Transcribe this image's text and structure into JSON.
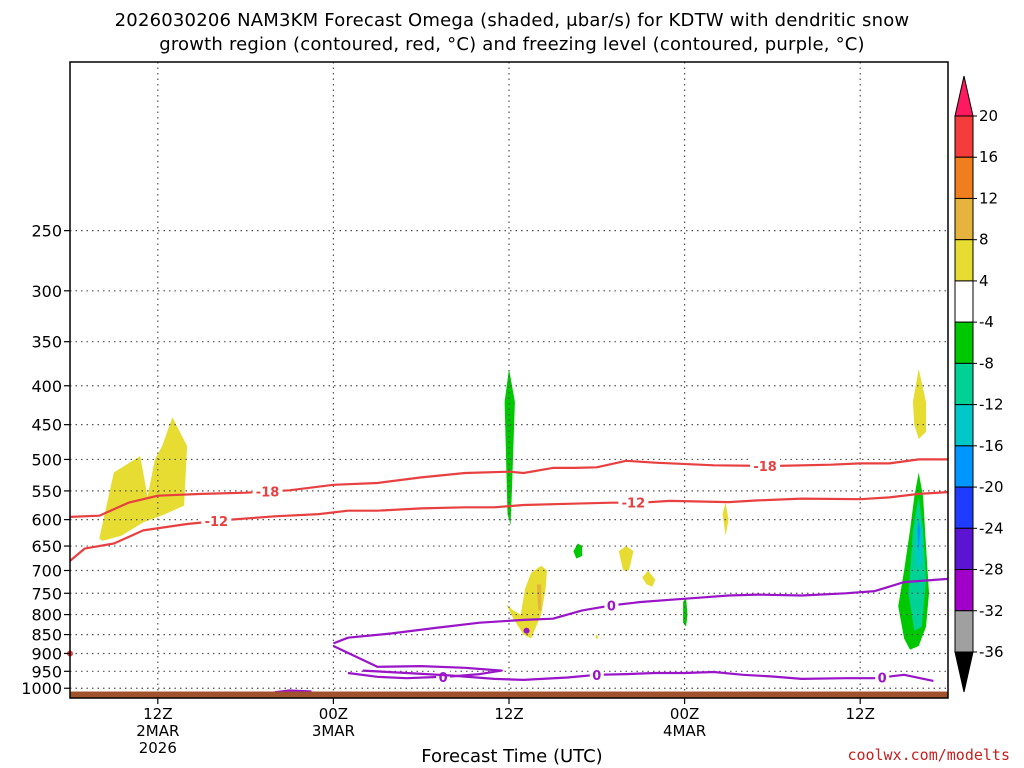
{
  "title_line1": "2026030206 NAM3KM Forecast Omega (shaded, μbar/s) for KDTW with dendritic snow",
  "title_line2": "growth region (contoured, red, °C) and freezing level (contoured, purple, °C)",
  "xaxis_title": "Forecast Time (UTC)",
  "credit": "coolwx.com/modelts",
  "chart_data": {
    "type": "heatmap",
    "title": "2026030206 NAM3KM Forecast Omega (shaded, μbar/s) for KDTW with dendritic snow growth region (contoured, red, °C) and freezing level (contoured, purple, °C)",
    "xlabel": "Forecast Time (UTC)",
    "ylabel": "",
    "x_unit": "forecast hour from 2026-03-02 06Z",
    "xlim": [
      0,
      60
    ],
    "ylim": [
      1030,
      150
    ],
    "y_scale": "log",
    "grid": true,
    "y_ticks": [
      250,
      300,
      350,
      400,
      450,
      500,
      550,
      600,
      650,
      700,
      750,
      800,
      850,
      900,
      950,
      1000
    ],
    "x_ticks": [
      {
        "hour": 6,
        "lines": [
          "12Z",
          "2MAR",
          "2026"
        ]
      },
      {
        "hour": 18,
        "lines": [
          "00Z",
          "3MAR"
        ]
      },
      {
        "hour": 30,
        "lines": [
          "12Z"
        ]
      },
      {
        "hour": 42,
        "lines": [
          "00Z",
          "4MAR"
        ]
      },
      {
        "hour": 54,
        "lines": [
          "12Z"
        ]
      }
    ],
    "colorbar": {
      "levels": [
        20,
        16,
        12,
        8,
        4,
        -4,
        -8,
        -12,
        -16,
        -20,
        -24,
        -28,
        -32,
        -36
      ],
      "colors": [
        "#ff1a60",
        "#f53c3c",
        "#f07d1e",
        "#e6b43c",
        "#e6dc32",
        "#ffffff",
        "#00c800",
        "#00d296",
        "#00c8c8",
        "#0096ff",
        "#1e3cff",
        "#5a14d2",
        "#a000c8",
        "#a0a0a0",
        "#000000"
      ]
    },
    "contours": [
      {
        "label": "-18",
        "color": "#e84040",
        "points": [
          [
            0,
            595
          ],
          [
            2,
            593
          ],
          [
            4,
            570
          ],
          [
            6,
            558
          ],
          [
            9,
            555
          ],
          [
            12,
            553
          ],
          [
            15,
            549
          ],
          [
            18,
            540
          ],
          [
            21,
            537
          ],
          [
            24,
            528
          ],
          [
            27,
            521
          ],
          [
            30,
            519
          ],
          [
            31,
            521
          ],
          [
            33,
            513
          ],
          [
            34.5,
            513
          ],
          [
            36,
            512
          ],
          [
            38,
            502
          ],
          [
            40,
            505
          ],
          [
            44,
            509
          ],
          [
            48,
            510
          ],
          [
            52,
            508
          ],
          [
            54,
            506
          ],
          [
            56,
            506
          ],
          [
            58,
            500
          ],
          [
            60,
            500
          ]
        ]
      },
      {
        "label": "-12",
        "color": "#e84040",
        "points": [
          [
            0,
            680
          ],
          [
            1,
            655
          ],
          [
            3,
            645
          ],
          [
            5,
            620
          ],
          [
            8,
            608
          ],
          [
            11,
            600
          ],
          [
            14,
            594
          ],
          [
            17,
            590
          ],
          [
            19,
            584
          ],
          [
            21,
            584
          ],
          [
            24,
            580
          ],
          [
            27,
            578
          ],
          [
            29,
            578
          ],
          [
            31,
            574
          ],
          [
            34,
            572
          ],
          [
            37,
            570
          ],
          [
            39,
            570
          ],
          [
            41,
            567
          ],
          [
            43,
            568
          ],
          [
            45,
            569
          ],
          [
            47,
            566
          ],
          [
            50,
            563
          ],
          [
            54,
            564
          ],
          [
            56,
            561
          ],
          [
            58,
            555
          ],
          [
            60,
            552
          ]
        ]
      },
      {
        "label": "0",
        "color": "#9a14c8",
        "points": [
          [
            18,
            873
          ],
          [
            19,
            858
          ],
          [
            22,
            847
          ],
          [
            25,
            833
          ],
          [
            28,
            820
          ],
          [
            31,
            813
          ],
          [
            33,
            810
          ],
          [
            35,
            790
          ],
          [
            37,
            778
          ],
          [
            39,
            770
          ],
          [
            41,
            765
          ],
          [
            43,
            760
          ],
          [
            45,
            755
          ],
          [
            47,
            753
          ],
          [
            50,
            755
          ],
          [
            53,
            750
          ],
          [
            55,
            745
          ],
          [
            57,
            725
          ],
          [
            60,
            718
          ]
        ]
      },
      {
        "label": "0",
        "color": "#9a14c8",
        "points": [
          [
            19,
            955
          ],
          [
            21,
            966
          ],
          [
            23,
            970
          ],
          [
            26,
            965
          ],
          [
            28,
            958
          ],
          [
            29.5,
            948
          ],
          [
            27,
            940
          ],
          [
            24,
            935
          ],
          [
            21,
            937
          ],
          [
            18,
            880
          ]
        ]
      },
      {
        "label": "0",
        "color": "#9a14c8",
        "points": [
          [
            20,
            948
          ],
          [
            23,
            955
          ],
          [
            26,
            962
          ],
          [
            29,
            972
          ],
          [
            31,
            975
          ],
          [
            34,
            968
          ],
          [
            36,
            960
          ],
          [
            38,
            958
          ],
          [
            40,
            955
          ],
          [
            42,
            955
          ],
          [
            44,
            952
          ],
          [
            46,
            960
          ],
          [
            48,
            965
          ],
          [
            50,
            972
          ],
          [
            53,
            970
          ],
          [
            55,
            970
          ],
          [
            57,
            960
          ],
          [
            59,
            978
          ]
        ]
      },
      {
        "label": "",
        "color": "#9a14c8",
        "points": [
          [
            14,
            1012
          ],
          [
            15,
            1007
          ],
          [
            16.5,
            1010
          ]
        ]
      }
    ],
    "omega_regions": [
      {
        "value": 4,
        "color": "#e6dc32",
        "points": [
          [
            2,
            635
          ],
          [
            3,
            520
          ],
          [
            4.8,
            495
          ],
          [
            5.3,
            560
          ],
          [
            5.8,
            500
          ],
          [
            6.3,
            480
          ],
          [
            7,
            440
          ],
          [
            8,
            480
          ],
          [
            7.8,
            575
          ],
          [
            6.5,
            590
          ],
          [
            5,
            605
          ],
          [
            3.5,
            630
          ],
          [
            2.2,
            640
          ]
        ]
      },
      {
        "value": -4,
        "color": "#00c800",
        "points": [
          [
            29.7,
            420
          ],
          [
            30,
            380
          ],
          [
            30.4,
            420
          ],
          [
            30.2,
            550
          ],
          [
            30.1,
            610
          ],
          [
            29.9,
            590
          ],
          [
            29.8,
            500
          ]
        ]
      },
      {
        "value": 4,
        "color": "#e6dc32",
        "points": [
          [
            29.8,
            775
          ],
          [
            30.3,
            810
          ],
          [
            31,
            850
          ],
          [
            31.5,
            860
          ],
          [
            32.2,
            800
          ],
          [
            32.5,
            740
          ],
          [
            32.6,
            700
          ],
          [
            32.2,
            690
          ],
          [
            31.5,
            705
          ],
          [
            31.1,
            740
          ],
          [
            30.8,
            800
          ],
          [
            30.3,
            790
          ]
        ]
      },
      {
        "value": 8,
        "color": "#e6b43c",
        "points": [
          [
            31.9,
            730
          ],
          [
            32,
            790
          ],
          [
            32.2,
            790
          ],
          [
            32.2,
            730
          ]
        ]
      },
      {
        "value": -4,
        "color": "#00c800",
        "points": [
          [
            34.4,
            660
          ],
          [
            34.7,
            645
          ],
          [
            35,
            650
          ],
          [
            35,
            670
          ],
          [
            34.6,
            675
          ]
        ]
      },
      {
        "value": 4,
        "color": "#e6dc32",
        "points": [
          [
            35.9,
            855
          ],
          [
            36,
            850
          ],
          [
            36.1,
            858
          ],
          [
            36,
            862
          ]
        ]
      },
      {
        "value": 4,
        "color": "#e6dc32",
        "points": [
          [
            37.5,
            660
          ],
          [
            38,
            650
          ],
          [
            38.5,
            660
          ],
          [
            38.2,
            700
          ],
          [
            37.8,
            700
          ]
        ]
      },
      {
        "value": 4,
        "color": "#e6dc32",
        "points": [
          [
            39.1,
            715
          ],
          [
            39.5,
            700
          ],
          [
            40,
            720
          ],
          [
            39.8,
            735
          ],
          [
            39.4,
            730
          ]
        ]
      },
      {
        "value": -4,
        "color": "#00c800",
        "points": [
          [
            41.9,
            770
          ],
          [
            42.1,
            760
          ],
          [
            42.2,
            800
          ],
          [
            42.1,
            830
          ],
          [
            41.9,
            820
          ]
        ]
      },
      {
        "value": 4,
        "color": "#e6dc32",
        "points": [
          [
            44.6,
            590
          ],
          [
            44.8,
            570
          ],
          [
            45,
            600
          ],
          [
            44.8,
            630
          ]
        ]
      },
      {
        "value": 4,
        "color": "#e6dc32",
        "points": [
          [
            57.6,
            420
          ],
          [
            58,
            380
          ],
          [
            58.5,
            420
          ],
          [
            58.5,
            460
          ],
          [
            58,
            470
          ],
          [
            57.7,
            450
          ]
        ]
      },
      {
        "value": -4,
        "color": "#00c800",
        "points": [
          [
            56.6,
            780
          ],
          [
            57,
            700
          ],
          [
            57.4,
            620
          ],
          [
            57.7,
            560
          ],
          [
            58,
            520
          ],
          [
            58.3,
            560
          ],
          [
            58.5,
            650
          ],
          [
            58.7,
            750
          ],
          [
            58.5,
            830
          ],
          [
            58,
            880
          ],
          [
            57.4,
            890
          ],
          [
            57,
            860
          ]
        ]
      },
      {
        "value": -8,
        "color": "#00d296",
        "points": [
          [
            57.3,
            750
          ],
          [
            57.6,
            620
          ],
          [
            58,
            560
          ],
          [
            58.3,
            620
          ],
          [
            58.5,
            720
          ],
          [
            58.2,
            830
          ],
          [
            57.7,
            840
          ]
        ]
      },
      {
        "value": -12,
        "color": "#00c8c8",
        "points": [
          [
            57.8,
            650
          ],
          [
            58,
            600
          ],
          [
            58.2,
            620
          ],
          [
            58.2,
            680
          ],
          [
            57.9,
            700
          ]
        ]
      },
      {
        "value": -16,
        "color": "#0096ff",
        "points": [
          [
            57.9,
            620
          ],
          [
            58,
            600
          ],
          [
            58.1,
            620
          ],
          [
            58,
            660
          ]
        ]
      }
    ],
    "markers": [
      {
        "x": 31.2,
        "y": 840,
        "color": "#9a14c8"
      },
      {
        "x": 0,
        "y": 900,
        "color": "#e84040"
      }
    ],
    "surface": {
      "color": "#a0522d",
      "pressure": 1010
    }
  }
}
